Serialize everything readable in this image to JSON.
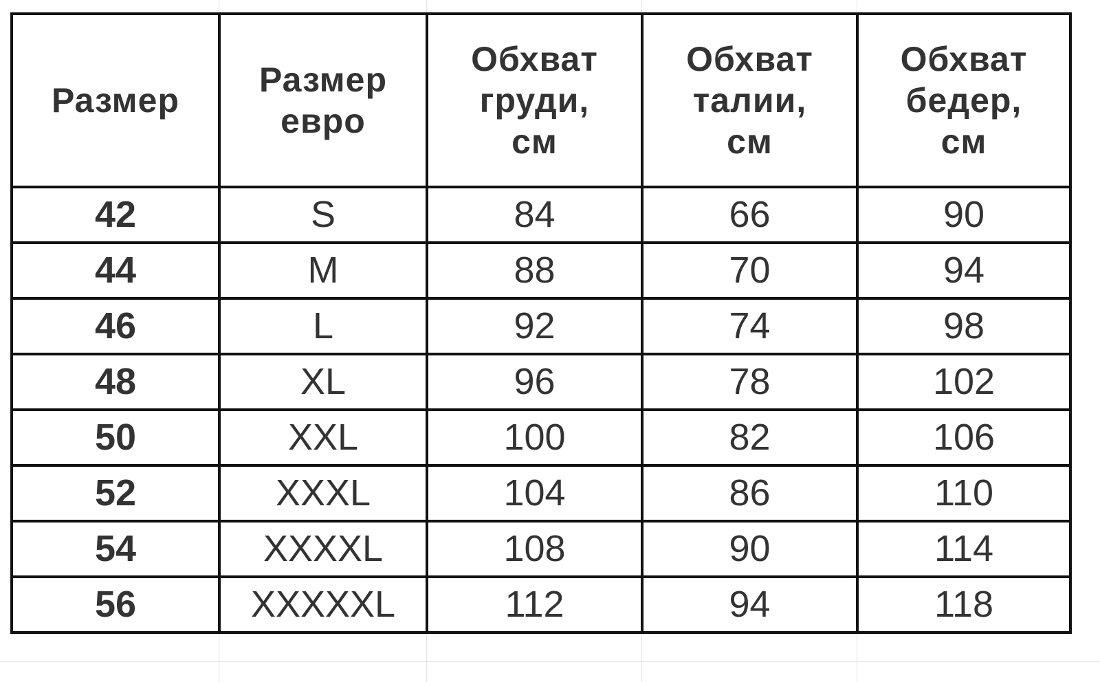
{
  "table": {
    "headers": [
      "Размер",
      "Размер евро",
      "Обхват груди, см",
      "Обхват талии, см",
      "Обхват бедер, см"
    ],
    "header_lines": [
      [
        "Размер"
      ],
      [
        "Размер",
        "евро"
      ],
      [
        "Обхват",
        "груди,",
        "см"
      ],
      [
        "Обхват",
        "талии,",
        "см"
      ],
      [
        "Обхват",
        "бедер,",
        "см"
      ]
    ],
    "rows": [
      [
        "42",
        "S",
        "84",
        "66",
        "90"
      ],
      [
        "44",
        "M",
        "88",
        "70",
        "94"
      ],
      [
        "46",
        "L",
        "92",
        "74",
        "98"
      ],
      [
        "48",
        "XL",
        "96",
        "78",
        "102"
      ],
      [
        "50",
        "XXL",
        "100",
        "82",
        "106"
      ],
      [
        "52",
        "XXXL",
        "104",
        "86",
        "110"
      ],
      [
        "54",
        "XXXXL",
        "108",
        "90",
        "114"
      ],
      [
        "56",
        "XXXXXL",
        "112",
        "94",
        "118"
      ]
    ]
  }
}
